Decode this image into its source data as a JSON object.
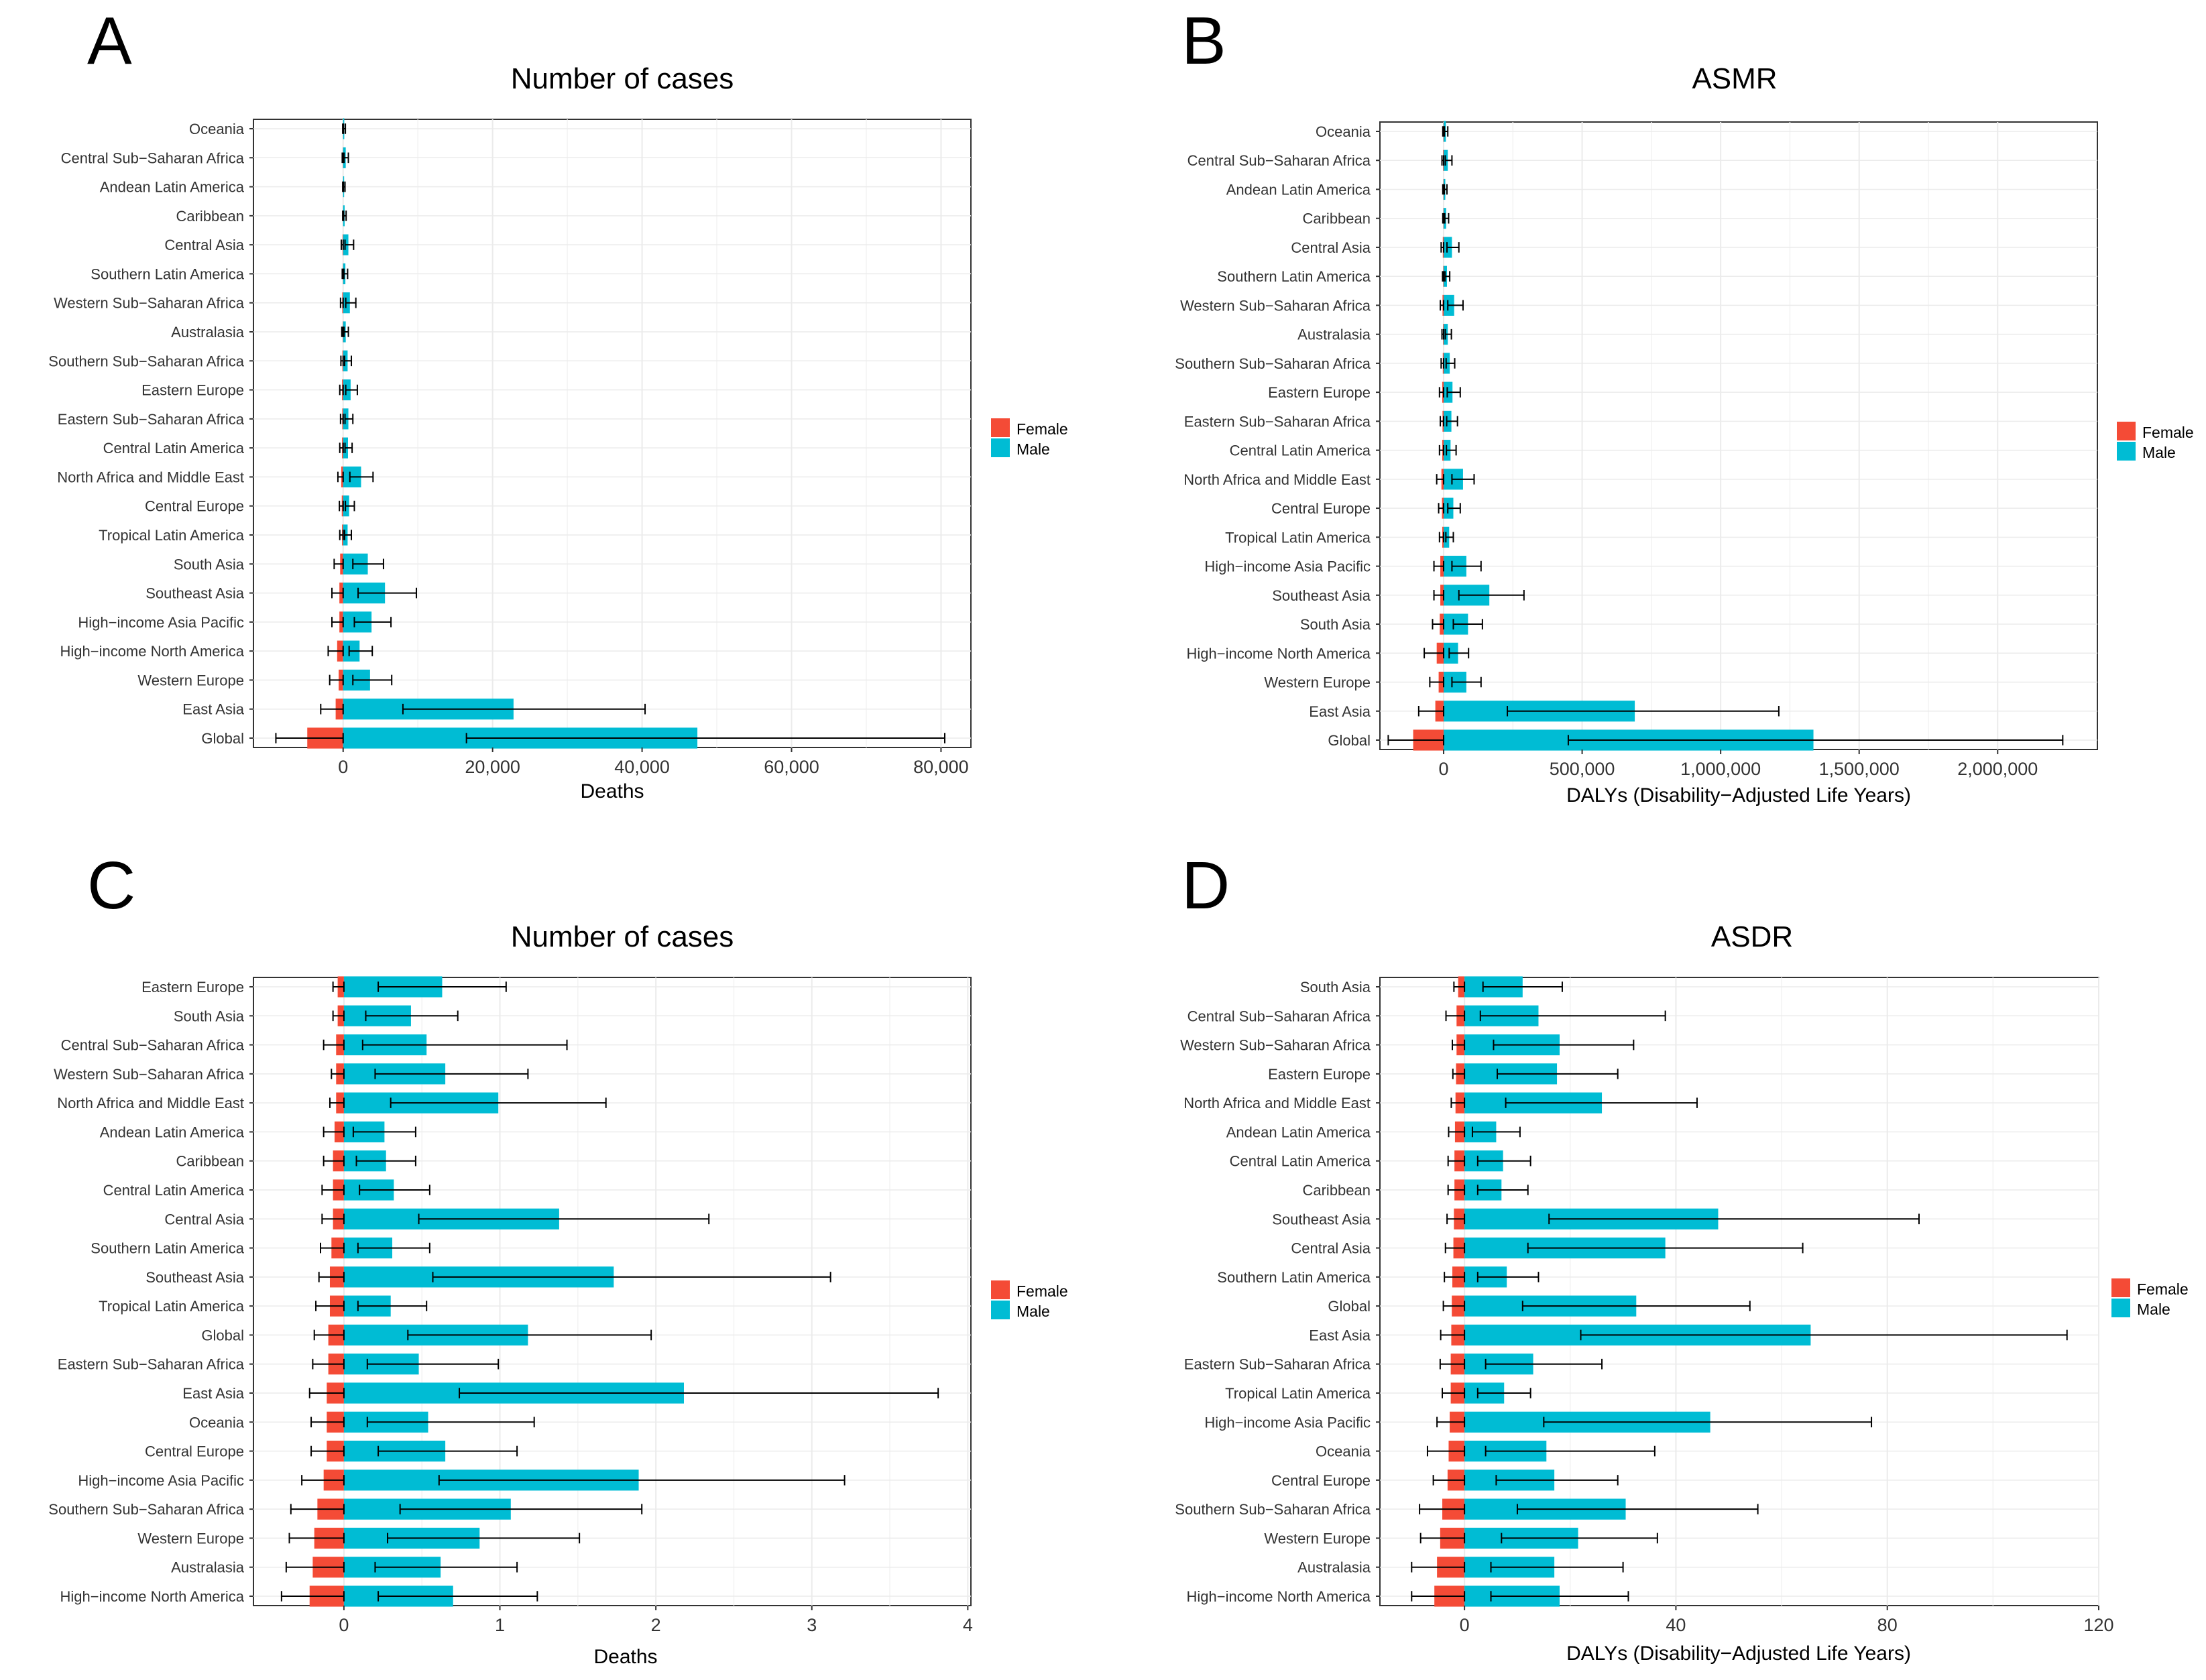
{
  "figure": {
    "legend": {
      "female": "Female",
      "male": "Male"
    },
    "colors": {
      "female": "#F44B36",
      "male": "#00BCD4",
      "grid": "#EBEBEB",
      "errorbar": "#000000",
      "panel_border": "#333333"
    }
  },
  "chart_data": [
    {
      "panel_letter": "A",
      "type": "bar",
      "title": "Number of cases",
      "xlabel": "Deaths",
      "ylabel": "",
      "xlim": [
        -12000,
        84000
      ],
      "xticks": [
        0,
        20000,
        40000,
        60000,
        80000
      ],
      "xtick_labels": [
        "0",
        "20,000",
        "40,000",
        "60,000",
        "80,000"
      ],
      "categories": [
        "Oceania",
        "Central Sub−Saharan Africa",
        "Andean Latin America",
        "Caribbean",
        "Central Asia",
        "Southern Latin America",
        "Western Sub−Saharan Africa",
        "Australasia",
        "Southern Sub−Saharan Africa",
        "Eastern Europe",
        "Eastern Sub−Saharan Africa",
        "Central Latin America",
        "North Africa and Middle East",
        "Central Europe",
        "Tropical Latin America",
        "South Asia",
        "Southeast Asia",
        "High−income Asia Pacific",
        "High−income North America",
        "Western Europe",
        "East Asia",
        "Global"
      ],
      "series": [
        {
          "name": "Female",
          "values": [
            -20,
            -40,
            -20,
            -20,
            -80,
            -40,
            -120,
            -60,
            -100,
            -150,
            -120,
            -150,
            -250,
            -180,
            -150,
            -400,
            -500,
            -500,
            -800,
            -600,
            -1000,
            -4800
          ],
          "lower": [
            -60,
            -120,
            -60,
            -60,
            -250,
            -120,
            -350,
            -180,
            -300,
            -450,
            -350,
            -450,
            -700,
            -500,
            -450,
            -1200,
            -1500,
            -1500,
            -2000,
            -1800,
            -3000,
            -9000
          ]
        },
        {
          "name": "Male",
          "values": [
            150,
            350,
            130,
            200,
            700,
            300,
            900,
            350,
            600,
            1000,
            700,
            650,
            2400,
            800,
            600,
            3300,
            5600,
            3800,
            2200,
            3600,
            22800,
            47400
          ],
          "upper": [
            300,
            700,
            250,
            400,
            1400,
            600,
            1700,
            700,
            1100,
            1900,
            1300,
            1200,
            4000,
            1500,
            1100,
            5400,
            9800,
            6400,
            3900,
            6500,
            40400,
            80500
          ],
          "lower": [
            50,
            120,
            40,
            70,
            250,
            100,
            350,
            120,
            200,
            350,
            250,
            250,
            900,
            300,
            200,
            1300,
            2000,
            1500,
            800,
            1300,
            8000,
            16500
          ]
        }
      ]
    },
    {
      "panel_letter": "B",
      "type": "bar",
      "title": "ASMR",
      "xlabel": "DALYs (Disability−Adjusted Life Years)",
      "ylabel": "",
      "xlim": [
        -230000,
        2360000
      ],
      "xticks": [
        0,
        500000,
        1000000,
        1500000,
        2000000
      ],
      "xtick_labels": [
        "0",
        "500,000",
        "1,000,000",
        "1,500,000",
        "2,000,000"
      ],
      "categories": [
        "Oceania",
        "Central Sub−Saharan Africa",
        "Andean Latin America",
        "Caribbean",
        "Central Asia",
        "Southern Latin America",
        "Western Sub−Saharan Africa",
        "Australasia",
        "Southern Sub−Saharan Africa",
        "Eastern Europe",
        "Eastern Sub−Saharan Africa",
        "Central Latin America",
        "North Africa and Middle East",
        "Central Europe",
        "Tropical Latin America",
        "High−income Asia Pacific",
        "Southeast Asia",
        "South Asia",
        "High−income North America",
        "Western Europe",
        "East Asia",
        "Global"
      ],
      "series": [
        {
          "name": "Female",
          "values": [
            -1000,
            -2000,
            -1000,
            -1000,
            -3000,
            -1500,
            -4000,
            -2000,
            -3000,
            -5000,
            -4000,
            -5000,
            -8000,
            -6000,
            -5000,
            -12000,
            -12000,
            -14000,
            -25000,
            -18000,
            -30000,
            -110000
          ],
          "lower": [
            -3000,
            -6000,
            -3000,
            -3000,
            -9000,
            -4000,
            -12000,
            -6000,
            -9000,
            -15000,
            -12000,
            -15000,
            -25000,
            -18000,
            -15000,
            -35000,
            -35000,
            -40000,
            -70000,
            -50000,
            -90000,
            -200000
          ]
        },
        {
          "name": "Male",
          "values": [
            8000,
            15000,
            6000,
            9000,
            30000,
            12000,
            38000,
            15000,
            22000,
            32000,
            28000,
            25000,
            70000,
            35000,
            20000,
            82000,
            165000,
            88000,
            52000,
            82000,
            690000,
            1335000
          ],
          "upper": [
            15000,
            30000,
            12000,
            18000,
            55000,
            22000,
            70000,
            28000,
            40000,
            60000,
            50000,
            45000,
            110000,
            60000,
            35000,
            135000,
            290000,
            140000,
            90000,
            135000,
            1210000,
            2235000
          ],
          "lower": [
            3000,
            6000,
            2500,
            4000,
            12000,
            5000,
            15000,
            6000,
            9000,
            13000,
            11000,
            10000,
            30000,
            15000,
            8000,
            30000,
            55000,
            35000,
            20000,
            30000,
            230000,
            450000
          ]
        }
      ]
    },
    {
      "panel_letter": "C",
      "type": "bar",
      "title": "Number of cases",
      "xlabel": "Deaths",
      "ylabel": "",
      "xlim": [
        -0.58,
        4.02
      ],
      "xticks": [
        0,
        1,
        2,
        3,
        4
      ],
      "xtick_labels": [
        "0",
        "1",
        "2",
        "3",
        "4"
      ],
      "categories": [
        "Eastern Europe",
        "South Asia",
        "Central Sub−Saharan Africa",
        "Western Sub−Saharan Africa",
        "North Africa and Middle East",
        "Andean Latin America",
        "Caribbean",
        "Central Latin America",
        "Central Asia",
        "Southern Latin America",
        "Southeast Asia",
        "Tropical Latin America",
        "Global",
        "Eastern Sub−Saharan Africa",
        "East Asia",
        "Oceania",
        "Central Europe",
        "High−income Asia Pacific",
        "Southern Sub−Saharan Africa",
        "Western Europe",
        "Australasia",
        "High−income North America"
      ],
      "series": [
        {
          "name": "Female",
          "values": [
            -0.04,
            -0.04,
            -0.05,
            -0.05,
            -0.05,
            -0.06,
            -0.07,
            -0.07,
            -0.07,
            -0.08,
            -0.09,
            -0.09,
            -0.1,
            -0.1,
            -0.11,
            -0.11,
            -0.11,
            -0.13,
            -0.17,
            -0.19,
            -0.2,
            -0.22
          ],
          "lower": [
            -0.07,
            -0.07,
            -0.13,
            -0.08,
            -0.09,
            -0.13,
            -0.13,
            -0.14,
            -0.14,
            -0.15,
            -0.16,
            -0.18,
            -0.19,
            -0.2,
            -0.22,
            -0.21,
            -0.21,
            -0.27,
            -0.34,
            -0.35,
            -0.37,
            -0.4
          ]
        },
        {
          "name": "Male",
          "values": [
            0.63,
            0.43,
            0.53,
            0.65,
            0.99,
            0.26,
            0.27,
            0.32,
            1.38,
            0.31,
            1.73,
            0.3,
            1.18,
            0.48,
            2.18,
            0.54,
            0.65,
            1.89,
            1.07,
            0.87,
            0.62,
            0.7
          ],
          "upper": [
            1.04,
            0.73,
            1.43,
            1.18,
            1.68,
            0.46,
            0.46,
            0.55,
            2.34,
            0.55,
            3.12,
            0.53,
            1.97,
            0.99,
            3.81,
            1.22,
            1.11,
            3.21,
            1.91,
            1.51,
            1.11,
            1.24
          ],
          "lower": [
            0.22,
            0.14,
            0.12,
            0.2,
            0.3,
            0.06,
            0.08,
            0.1,
            0.48,
            0.09,
            0.57,
            0.09,
            0.41,
            0.15,
            0.74,
            0.15,
            0.22,
            0.61,
            0.36,
            0.28,
            0.2,
            0.22
          ]
        }
      ]
    },
    {
      "panel_letter": "D",
      "type": "bar",
      "title": "ASDR",
      "xlabel": "DALYs (Disability−Adjusted Life Years)",
      "ylabel": "",
      "xlim": [
        -16,
        120
      ],
      "xticks": [
        0,
        40,
        80,
        120
      ],
      "xtick_labels": [
        "0",
        "40",
        "80",
        "120"
      ],
      "categories": [
        "South Asia",
        "Central Sub−Saharan Africa",
        "Western Sub−Saharan Africa",
        "Eastern Europe",
        "North Africa and Middle East",
        "Andean Latin America",
        "Central Latin America",
        "Caribbean",
        "Southeast Asia",
        "Central Asia",
        "Southern Latin America",
        "Global",
        "East Asia",
        "Eastern Sub−Saharan Africa",
        "Tropical Latin America",
        "High−income Asia Pacific",
        "Oceania",
        "Central Europe",
        "Southern Sub−Saharan Africa",
        "Western Europe",
        "Australasia",
        "High−income North America"
      ],
      "series": [
        {
          "name": "Female",
          "values": [
            -1.2,
            -1.5,
            -1.5,
            -1.6,
            -1.7,
            -1.8,
            -1.9,
            -1.9,
            -2,
            -2.1,
            -2.3,
            -2.4,
            -2.5,
            -2.6,
            -2.6,
            -2.8,
            -3,
            -3.2,
            -4.2,
            -4.6,
            -5.2,
            -5.7
          ],
          "lower": [
            -2,
            -3.5,
            -2.3,
            -2.2,
            -2.5,
            -3,
            -3.1,
            -3.1,
            -3.3,
            -3.6,
            -3.8,
            -4,
            -4.5,
            -4.6,
            -4.2,
            -5.2,
            -7,
            -5.9,
            -8.5,
            -8.3,
            -10,
            -10
          ]
        },
        {
          "name": "Male",
          "values": [
            11,
            14,
            18,
            17.5,
            26,
            6,
            7.3,
            7,
            48,
            38,
            8,
            32.5,
            65.5,
            13,
            7.5,
            46.5,
            15.5,
            17,
            30.5,
            21.5,
            17,
            18
          ],
          "upper": [
            18.5,
            38,
            32,
            29,
            44,
            10.5,
            12.5,
            12,
            86,
            64,
            14,
            54,
            114,
            26,
            12.5,
            77,
            36,
            29,
            55.5,
            36.5,
            30,
            31
          ],
          "lower": [
            3.5,
            3,
            5.5,
            6.2,
            7.8,
            1.5,
            2.5,
            2.5,
            16,
            12,
            2.5,
            11,
            22,
            4,
            2.5,
            15,
            4,
            6,
            10,
            7,
            5,
            5
          ]
        }
      ]
    }
  ]
}
